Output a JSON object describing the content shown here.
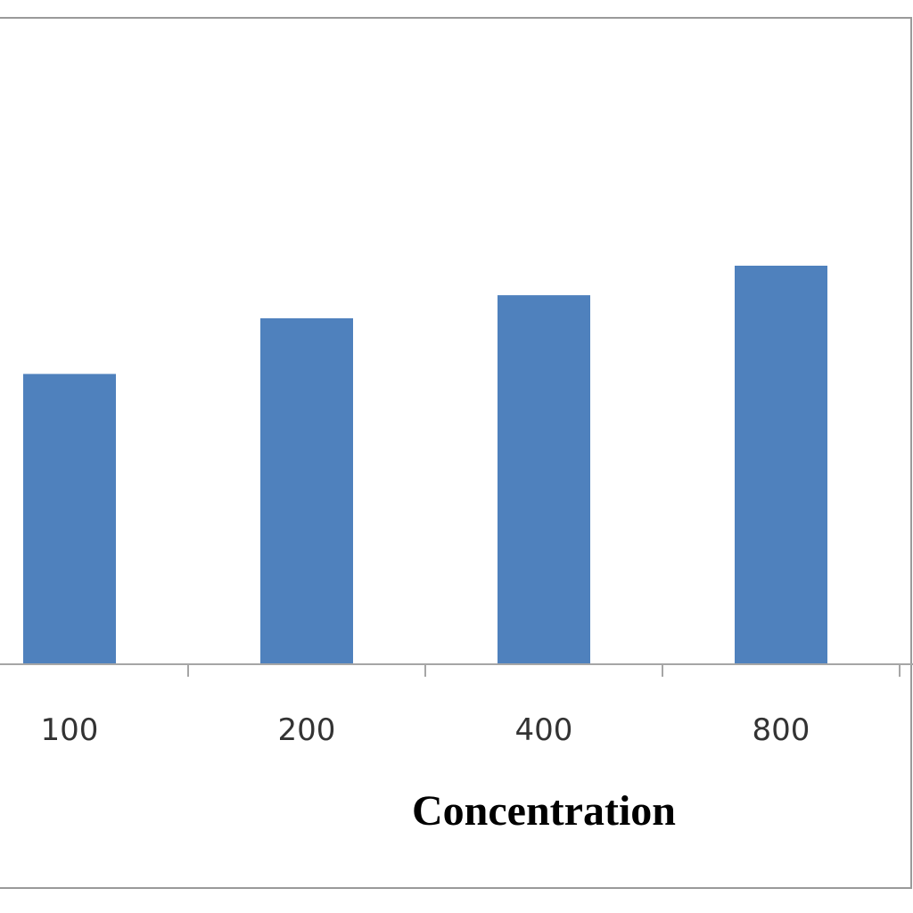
{
  "chart_data": {
    "type": "bar",
    "title": "",
    "xlabel": "Concentration",
    "ylabel": "",
    "categories": [
      "100",
      "200",
      "400",
      "800"
    ],
    "series": [
      {
        "values": [
          59.2,
          70.5,
          75.2,
          81.2
        ]
      }
    ],
    "ylim": [
      0,
      116
    ],
    "grid": false,
    "legend": "none",
    "colors": {
      "bar": "#4f81bd",
      "bar_edge": "#ffffff",
      "axis": "#a6a6a6",
      "frame": "#9a9a9a"
    }
  }
}
